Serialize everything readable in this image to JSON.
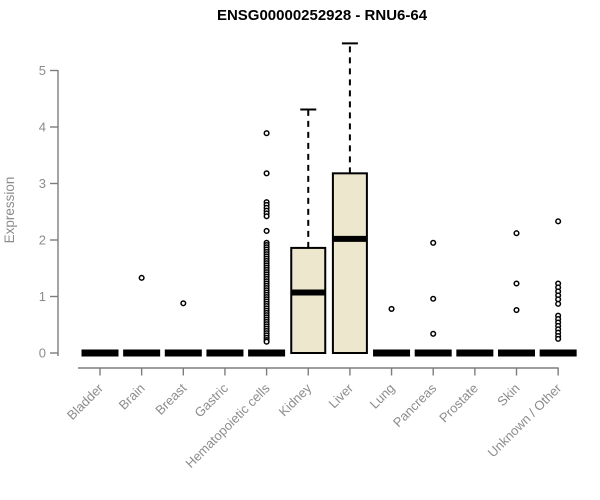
{
  "chart_data": {
    "type": "boxplot",
    "title": "ENSG00000252928 - RNU6-64",
    "ylabel": "Expression",
    "xlabel": "",
    "ylim": [
      0,
      5
    ],
    "yticks": [
      0,
      1,
      2,
      3,
      4,
      5
    ],
    "grid": false,
    "legend": "none",
    "categories": [
      "Bladder",
      "Brain",
      "Breast",
      "Gastric",
      "Hematopoietic cells",
      "Kidney",
      "Liver",
      "Lung",
      "Pancreas",
      "Prostate",
      "Skin",
      "Unknown / Other"
    ],
    "boxes": [
      {
        "category": "Bladder",
        "whisker_low": 0,
        "q1": 0,
        "median": 0,
        "q3": 0,
        "whisker_high": 0,
        "outliers": []
      },
      {
        "category": "Brain",
        "whisker_low": 0,
        "q1": 0,
        "median": 0,
        "q3": 0,
        "whisker_high": 0,
        "outliers": [
          1.33
        ]
      },
      {
        "category": "Breast",
        "whisker_low": 0,
        "q1": 0,
        "median": 0,
        "q3": 0,
        "whisker_high": 0,
        "outliers": [
          0.88
        ]
      },
      {
        "category": "Gastric",
        "whisker_low": 0,
        "q1": 0,
        "median": 0,
        "q3": 0,
        "whisker_high": 0,
        "outliers": []
      },
      {
        "category": "Hematopoietic cells",
        "whisker_low": 0,
        "q1": 0,
        "median": 0,
        "q3": 0,
        "whisker_high": 0,
        "outliers": [
          3.89,
          3.18,
          2.67,
          2.62,
          2.57,
          2.52,
          2.47,
          2.42,
          2.16,
          1.95,
          1.91,
          1.87,
          1.83,
          1.79,
          1.75,
          1.71,
          1.67,
          1.63,
          1.59,
          1.55,
          1.51,
          1.47,
          1.43,
          1.39,
          1.35,
          1.31,
          1.27,
          1.23,
          1.19,
          1.15,
          1.11,
          1.07,
          1.03,
          0.99,
          0.95,
          0.91,
          0.87,
          0.83,
          0.79,
          0.75,
          0.71,
          0.67,
          0.63,
          0.59,
          0.55,
          0.51,
          0.47,
          0.43,
          0.39,
          0.35,
          0.31,
          0.27,
          0.23,
          0.2
        ]
      },
      {
        "category": "Kidney",
        "whisker_low": 0,
        "q1": 0,
        "median": 1.07,
        "q3": 1.86,
        "whisker_high": 4.31,
        "outliers": []
      },
      {
        "category": "Liver",
        "whisker_low": 0,
        "q1": 0,
        "median": 2.02,
        "q3": 3.18,
        "whisker_high": 5.48,
        "outliers": []
      },
      {
        "category": "Lung",
        "whisker_low": 0,
        "q1": 0,
        "median": 0,
        "q3": 0,
        "whisker_high": 0,
        "outliers": [
          0.78
        ]
      },
      {
        "category": "Pancreas",
        "whisker_low": 0,
        "q1": 0,
        "median": 0,
        "q3": 0,
        "whisker_high": 0,
        "outliers": [
          1.95,
          0.96,
          0.34
        ]
      },
      {
        "category": "Prostate",
        "whisker_low": 0,
        "q1": 0,
        "median": 0,
        "q3": 0,
        "whisker_high": 0,
        "outliers": []
      },
      {
        "category": "Skin",
        "whisker_low": 0,
        "q1": 0,
        "median": 0,
        "q3": 0,
        "whisker_high": 0,
        "outliers": [
          2.12,
          1.23,
          0.76
        ]
      },
      {
        "category": "Unknown / Other",
        "whisker_low": 0,
        "q1": 0,
        "median": 0,
        "q3": 0,
        "whisker_high": 0,
        "outliers": [
          2.33,
          1.23,
          1.16,
          1.09,
          1.02,
          0.95,
          0.87,
          0.66,
          0.6,
          0.54,
          0.48,
          0.42,
          0.36,
          0.3,
          0.25
        ]
      }
    ],
    "colors": {
      "box_fill": "#ede7cd",
      "box_stroke": "#000000",
      "median": "#000000",
      "whisker": "#000000",
      "outlier_stroke": "#000000",
      "outlier_fill": "#ffffff",
      "axis": "#7d7d7d",
      "tick_label": "#8c8c8c",
      "title": "#000000",
      "background": "#ffffff"
    }
  }
}
